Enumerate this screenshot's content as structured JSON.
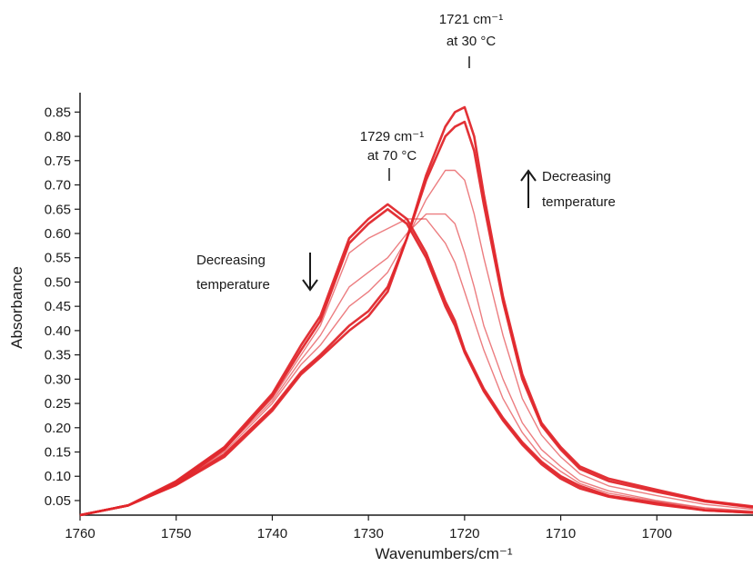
{
  "chart_data": {
    "type": "line",
    "title": "",
    "xlabel": "Wavenumbers/cm⁻¹",
    "ylabel": "Absorbance",
    "xlim": [
      1760,
      1690
    ],
    "ylim": [
      0.02,
      0.875
    ],
    "x_ticks": [
      "1760",
      "1750",
      "1740",
      "1730",
      "1720",
      "1710",
      "1700"
    ],
    "y_ticks": [
      "0.05",
      "0.10",
      "0.15",
      "0.20",
      "0.25",
      "0.30",
      "0.35",
      "0.40",
      "0.45",
      "0.50",
      "0.55",
      "0.60",
      "0.65",
      "0.70",
      "0.75",
      "0.80",
      "0.85"
    ],
    "grid": false,
    "line_color": "#e0262b",
    "x": [
      1760,
      1755,
      1750,
      1745,
      1740,
      1737,
      1735,
      1732,
      1730,
      1728,
      1726,
      1724,
      1722,
      1721,
      1720,
      1719,
      1718,
      1716,
      1714,
      1712,
      1710,
      1708,
      1705,
      1700,
      1695,
      1690
    ],
    "series": [
      {
        "values": [
          0.02,
          0.04,
          0.09,
          0.16,
          0.27,
          0.37,
          0.43,
          0.59,
          0.63,
          0.66,
          0.63,
          0.56,
          0.46,
          0.42,
          0.36,
          0.32,
          0.28,
          0.22,
          0.17,
          0.13,
          0.1,
          0.08,
          0.06,
          0.045,
          0.03,
          0.025
        ]
      },
      {
        "values": [
          0.02,
          0.04,
          0.085,
          0.155,
          0.265,
          0.36,
          0.42,
          0.58,
          0.62,
          0.65,
          0.62,
          0.55,
          0.45,
          0.41,
          0.355,
          0.315,
          0.275,
          0.215,
          0.165,
          0.125,
          0.095,
          0.075,
          0.058,
          0.042,
          0.03,
          0.025
        ]
      },
      {
        "values": [
          0.02,
          0.04,
          0.09,
          0.16,
          0.26,
          0.35,
          0.41,
          0.56,
          0.59,
          0.61,
          0.63,
          0.63,
          0.58,
          0.54,
          0.48,
          0.42,
          0.36,
          0.26,
          0.19,
          0.14,
          0.11,
          0.085,
          0.065,
          0.048,
          0.033,
          0.027
        ]
      },
      {
        "values": [
          0.02,
          0.04,
          0.088,
          0.155,
          0.255,
          0.34,
          0.39,
          0.49,
          0.52,
          0.55,
          0.6,
          0.64,
          0.64,
          0.62,
          0.56,
          0.49,
          0.41,
          0.3,
          0.21,
          0.155,
          0.12,
          0.09,
          0.07,
          0.05,
          0.035,
          0.028
        ]
      },
      {
        "values": [
          0.02,
          0.04,
          0.085,
          0.15,
          0.25,
          0.33,
          0.37,
          0.45,
          0.48,
          0.52,
          0.59,
          0.67,
          0.73,
          0.73,
          0.71,
          0.64,
          0.55,
          0.39,
          0.26,
          0.185,
          0.14,
          0.105,
          0.08,
          0.06,
          0.042,
          0.032
        ]
      },
      {
        "values": [
          0.02,
          0.04,
          0.083,
          0.145,
          0.24,
          0.315,
          0.35,
          0.41,
          0.44,
          0.49,
          0.59,
          0.71,
          0.8,
          0.82,
          0.83,
          0.77,
          0.66,
          0.46,
          0.3,
          0.205,
          0.155,
          0.115,
          0.09,
          0.068,
          0.048,
          0.036
        ]
      },
      {
        "values": [
          0.02,
          0.04,
          0.082,
          0.14,
          0.235,
          0.31,
          0.345,
          0.4,
          0.43,
          0.48,
          0.59,
          0.72,
          0.82,
          0.85,
          0.86,
          0.8,
          0.68,
          0.47,
          0.31,
          0.21,
          0.16,
          0.12,
          0.095,
          0.072,
          0.05,
          0.038
        ]
      }
    ],
    "annotations": {
      "peak_low_temp_line1": "1721 cm⁻¹",
      "peak_low_temp_line2": "at 30 °C",
      "peak_high_temp_line1": "1729 cm⁻¹",
      "peak_high_temp_line2": "at 70 °C",
      "left_label_line1": "Decreasing",
      "left_label_line2": "temperature",
      "right_label_line1": "Decreasing",
      "right_label_line2": "temperature"
    }
  }
}
